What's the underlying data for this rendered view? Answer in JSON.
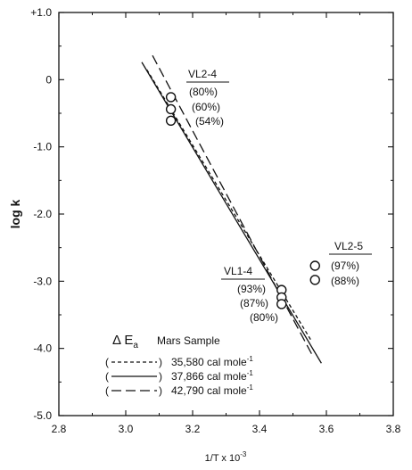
{
  "chart_data": {
    "type": "scatter",
    "title": "",
    "xlabel": "1/T x 10",
    "xlabel_exponent": "-3",
    "ylabel": "log k",
    "xlim": [
      2.8,
      3.8
    ],
    "ylim": [
      -5.0,
      1.0
    ],
    "x_ticks": [
      "2.8",
      "3.0",
      "3.2",
      "3.4",
      "3.6",
      "3.8"
    ],
    "y_ticks": [
      "+1.0",
      "0",
      "-1.0",
      "-2.0",
      "-3.0",
      "-4.0",
      "-5.0"
    ],
    "groups": [
      {
        "name": "VL2-4",
        "labels": [
          "(80%)",
          "(60%)",
          "(54%)"
        ],
        "points": [
          {
            "x": 3.135,
            "y": -0.26
          },
          {
            "x": 3.135,
            "y": -0.44
          },
          {
            "x": 3.135,
            "y": -0.61
          }
        ]
      },
      {
        "name": "VL1-4",
        "labels": [
          "(93%)",
          "(87%)",
          "(80%)"
        ],
        "points": [
          {
            "x": 3.466,
            "y": -3.13
          },
          {
            "x": 3.466,
            "y": -3.24
          },
          {
            "x": 3.466,
            "y": -3.34
          }
        ]
      },
      {
        "name": "VL2-5",
        "labels": [
          "(97%)",
          "(88%)"
        ],
        "points": [
          {
            "x": 3.566,
            "y": -2.77
          },
          {
            "x": 3.566,
            "y": -2.98
          }
        ]
      }
    ],
    "fit_lines": [
      {
        "name": "35,580 cal mole",
        "style": "short-dash",
        "x": [
          3.063,
          3.553
        ],
        "y": [
          0.15,
          -3.87
        ]
      },
      {
        "name": "37,866 cal mole",
        "style": "solid",
        "x": [
          3.048,
          3.585
        ],
        "y": [
          0.26,
          -4.22
        ]
      },
      {
        "name": "42,790 cal mole",
        "style": "long-dash",
        "x": [
          3.08,
          3.56
        ],
        "y": [
          0.36,
          -4.12
        ]
      }
    ],
    "legend": {
      "title_left": "Δ E",
      "title_sub": "a",
      "title_right": "Mars Sample",
      "unit_exponent": "-1",
      "placement": "bottom-left"
    },
    "grid": false
  }
}
